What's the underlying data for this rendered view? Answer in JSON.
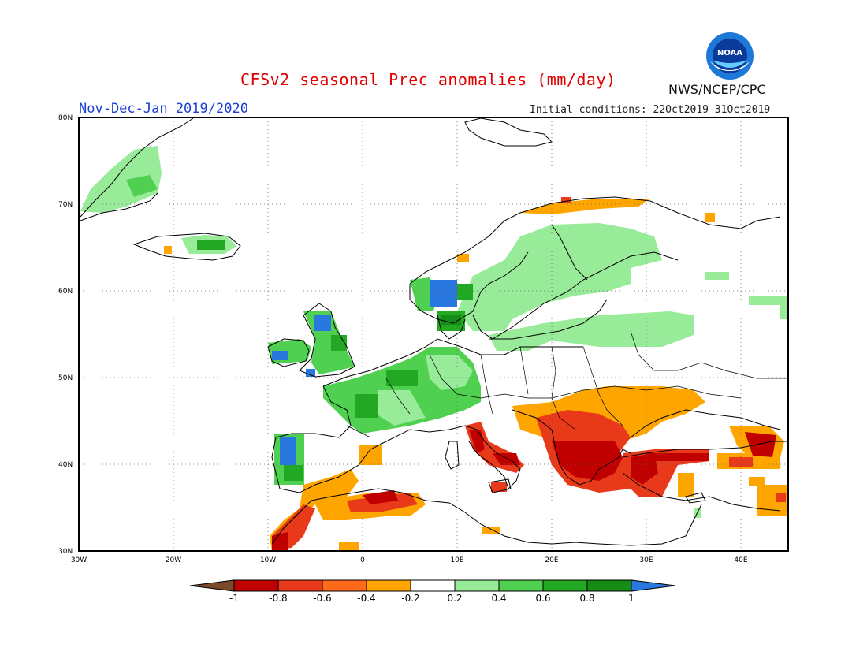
{
  "header": {
    "title": "CFSv2 seasonal Prec anomalies (mm/day)",
    "period": "Nov-Dec-Jan 2019/2020",
    "initial_conditions": "Initial conditions: 22Oct2019-31Oct2019",
    "agency": "NWS/NCEP/CPC",
    "logo_text": "NOAA"
  },
  "map": {
    "region": "Europe",
    "lon_range": [
      -30,
      45
    ],
    "lat_range": [
      30,
      80
    ],
    "lat_labels": [
      "30N",
      "40N",
      "50N",
      "60N",
      "70N",
      "80N"
    ],
    "lon_labels": [
      "30W",
      "20W",
      "10W",
      "0",
      "10E",
      "20E",
      "30E",
      "40E"
    ],
    "grid": "dotted"
  },
  "legend": {
    "labels": [
      "-1",
      "-0.8",
      "-0.6",
      "-0.4",
      "-0.2",
      "0.2",
      "0.4",
      "0.6",
      "0.8",
      "1"
    ],
    "colors": [
      "#7a4a2a",
      "#c00000",
      "#e8391a",
      "#ff6a1a",
      "#ffa500",
      "#ffffff",
      "#98eb98",
      "#50d050",
      "#22a822",
      "#158c15",
      "#2878e0"
    ]
  },
  "anomaly_regions": [
    {
      "name": "scandinavia-wet",
      "color": "#98eb98"
    },
    {
      "name": "uk-france-wet",
      "color": "#50d050"
    },
    {
      "name": "mediterranean-dry",
      "color": "#ffa500"
    },
    {
      "name": "greece-turkey-dry",
      "color": "#c00000"
    }
  ]
}
